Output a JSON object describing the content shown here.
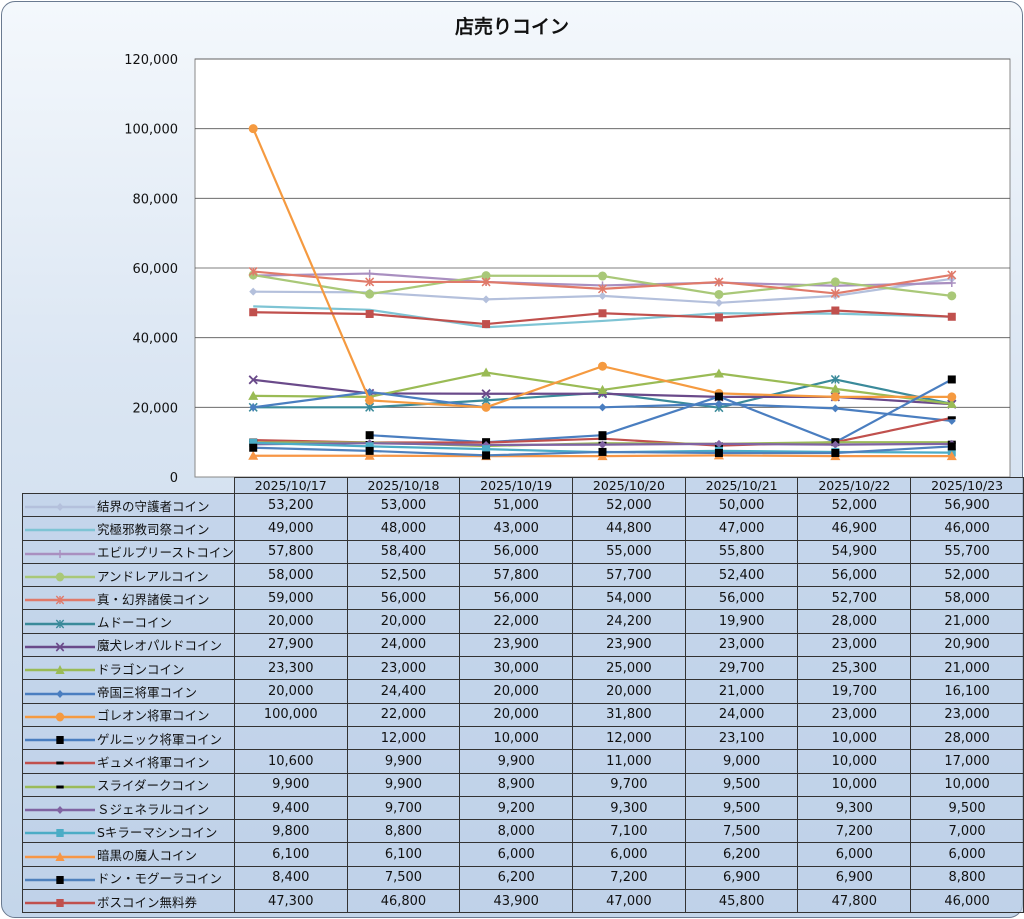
{
  "chart_data": {
    "type": "line",
    "title": "店売りコイン",
    "xlabel": "",
    "ylabel": "",
    "ylim": [
      0,
      120000
    ],
    "yticks": [
      "0",
      "20,000",
      "40,000",
      "60,000",
      "80,000",
      "100,000",
      "120,000"
    ],
    "grid": true,
    "legend": "table-left",
    "categories": [
      "2025/10/17",
      "2025/10/18",
      "2025/10/19",
      "2025/10/20",
      "2025/10/21",
      "2025/10/22",
      "2025/10/23"
    ],
    "series": [
      {
        "name": "結界の守護者コイン",
        "color": "#b4c0dc",
        "marker": "diamond",
        "values": [
          53200,
          53000,
          51000,
          52000,
          50000,
          52000,
          56900
        ],
        "labels": [
          "53,200",
          "53,000",
          "51,000",
          "52,000",
          "50,000",
          "52,000",
          "56,900"
        ]
      },
      {
        "name": "究極邪教司祭コイン",
        "color": "#7ec4d4",
        "marker": "none",
        "values": [
          49000,
          48000,
          43000,
          44800,
          47000,
          46900,
          46000
        ],
        "labels": [
          "49,000",
          "48,000",
          "43,000",
          "44,800",
          "47,000",
          "46,900",
          "46,000"
        ]
      },
      {
        "name": "エビルプリーストコイン",
        "color": "#a98fc0",
        "marker": "plus",
        "values": [
          57800,
          58400,
          56000,
          55000,
          55800,
          54900,
          55700
        ],
        "labels": [
          "57,800",
          "58,400",
          "56,000",
          "55,000",
          "55,800",
          "54,900",
          "55,700"
        ]
      },
      {
        "name": "アンドレアルコイン",
        "color": "#a9c878",
        "marker": "circle",
        "values": [
          58000,
          52500,
          57800,
          57700,
          52400,
          56000,
          52000
        ],
        "labels": [
          "58,000",
          "52,500",
          "57,800",
          "57,700",
          "52,400",
          "56,000",
          "52,000"
        ]
      },
      {
        "name": "真・幻界諸侯コイン",
        "color": "#e07a6a",
        "marker": "star",
        "values": [
          59000,
          56000,
          56000,
          54000,
          56000,
          52700,
          58000
        ],
        "labels": [
          "59,000",
          "56,000",
          "56,000",
          "54,000",
          "56,000",
          "52,700",
          "58,000"
        ]
      },
      {
        "name": "ムドーコイン",
        "color": "#3a8a9a",
        "marker": "star",
        "values": [
          20000,
          20000,
          22000,
          24200,
          19900,
          28000,
          21000
        ],
        "labels": [
          "20,000",
          "20,000",
          "22,000",
          "24,200",
          "19,900",
          "28,000",
          "21,000"
        ]
      },
      {
        "name": "魔犬レオパルドコイン",
        "color": "#6a4a8a",
        "marker": "x",
        "values": [
          27900,
          24000,
          23900,
          23900,
          23000,
          23000,
          20900
        ],
        "labels": [
          "27,900",
          "24,000",
          "23,900",
          "23,900",
          "23,000",
          "23,000",
          "20,900"
        ]
      },
      {
        "name": "ドラゴンコイン",
        "color": "#9abb55",
        "marker": "triangle",
        "values": [
          23300,
          23000,
          30000,
          25000,
          29700,
          25300,
          21000
        ],
        "labels": [
          "23,300",
          "23,000",
          "30,000",
          "25,000",
          "29,700",
          "25,300",
          "21,000"
        ]
      },
      {
        "name": "帝国三将軍コイン",
        "color": "#4a7ec0",
        "marker": "diamond",
        "values": [
          20000,
          24400,
          20000,
          20000,
          21000,
          19700,
          16100
        ],
        "labels": [
          "20,000",
          "24,400",
          "20,000",
          "20,000",
          "21,000",
          "19,700",
          "16,100"
        ]
      },
      {
        "name": "ゴレオン将軍コイン",
        "color": "#f59a40",
        "marker": "circle",
        "values": [
          100000,
          22000,
          20000,
          31800,
          24000,
          23000,
          23000
        ],
        "labels": [
          "100,000",
          "22,000",
          "20,000",
          "31,800",
          "24,000",
          "23,000",
          "23,000"
        ]
      },
      {
        "name": "ゲルニック将軍コイン",
        "color": "#4a7ec0",
        "marker": "blacksquare",
        "values": [
          null,
          12000,
          10000,
          12000,
          23100,
          10000,
          28000
        ],
        "labels": [
          "",
          "12,000",
          "10,000",
          "12,000",
          "23,100",
          "10,000",
          "28,000"
        ]
      },
      {
        "name": "ギュメイ将軍コイン",
        "color": "#c0504d",
        "marker": "blackdash",
        "values": [
          10600,
          9900,
          9900,
          11000,
          9000,
          10000,
          17000
        ],
        "labels": [
          "10,600",
          "9,900",
          "9,900",
          "11,000",
          "9,000",
          "10,000",
          "17,000"
        ]
      },
      {
        "name": "スライダークコイン",
        "color": "#9bbb59",
        "marker": "blackdash",
        "values": [
          9900,
          9900,
          8900,
          9700,
          9500,
          10000,
          10000
        ],
        "labels": [
          "9,900",
          "9,900",
          "8,900",
          "9,700",
          "9,500",
          "10,000",
          "10,000"
        ]
      },
      {
        "name": "Ｓジェネラルコイン",
        "color": "#8064a2",
        "marker": "diamond",
        "values": [
          9400,
          9700,
          9200,
          9300,
          9500,
          9300,
          9500
        ],
        "labels": [
          "9,400",
          "9,700",
          "9,200",
          "9,300",
          "9,500",
          "9,300",
          "9,500"
        ]
      },
      {
        "name": "Sキラーマシンコイン",
        "color": "#4bacc6",
        "marker": "square",
        "values": [
          9800,
          8800,
          8000,
          7100,
          7500,
          7200,
          7000
        ],
        "labels": [
          "9,800",
          "8,800",
          "8,000",
          "7,100",
          "7,500",
          "7,200",
          "7,000"
        ]
      },
      {
        "name": "暗黒の魔人コイン",
        "color": "#f79646",
        "marker": "triangle",
        "values": [
          6100,
          6100,
          6000,
          6000,
          6200,
          6000,
          6000
        ],
        "labels": [
          "6,100",
          "6,100",
          "6,000",
          "6,000",
          "6,200",
          "6,000",
          "6,000"
        ]
      },
      {
        "name": "ドン・モグーラコイン",
        "color": "#4f81bd",
        "marker": "blacksquare",
        "values": [
          8400,
          7500,
          6200,
          7200,
          6900,
          6900,
          8800
        ],
        "labels": [
          "8,400",
          "7,500",
          "6,200",
          "7,200",
          "6,900",
          "6,900",
          "8,800"
        ]
      },
      {
        "name": "ボスコイン無料券",
        "color": "#c0504d",
        "marker": "square",
        "values": [
          47300,
          46800,
          43900,
          47000,
          45800,
          47800,
          46000
        ],
        "labels": [
          "47,300",
          "46,800",
          "43,900",
          "47,000",
          "45,800",
          "47,800",
          "46,000"
        ]
      }
    ]
  }
}
